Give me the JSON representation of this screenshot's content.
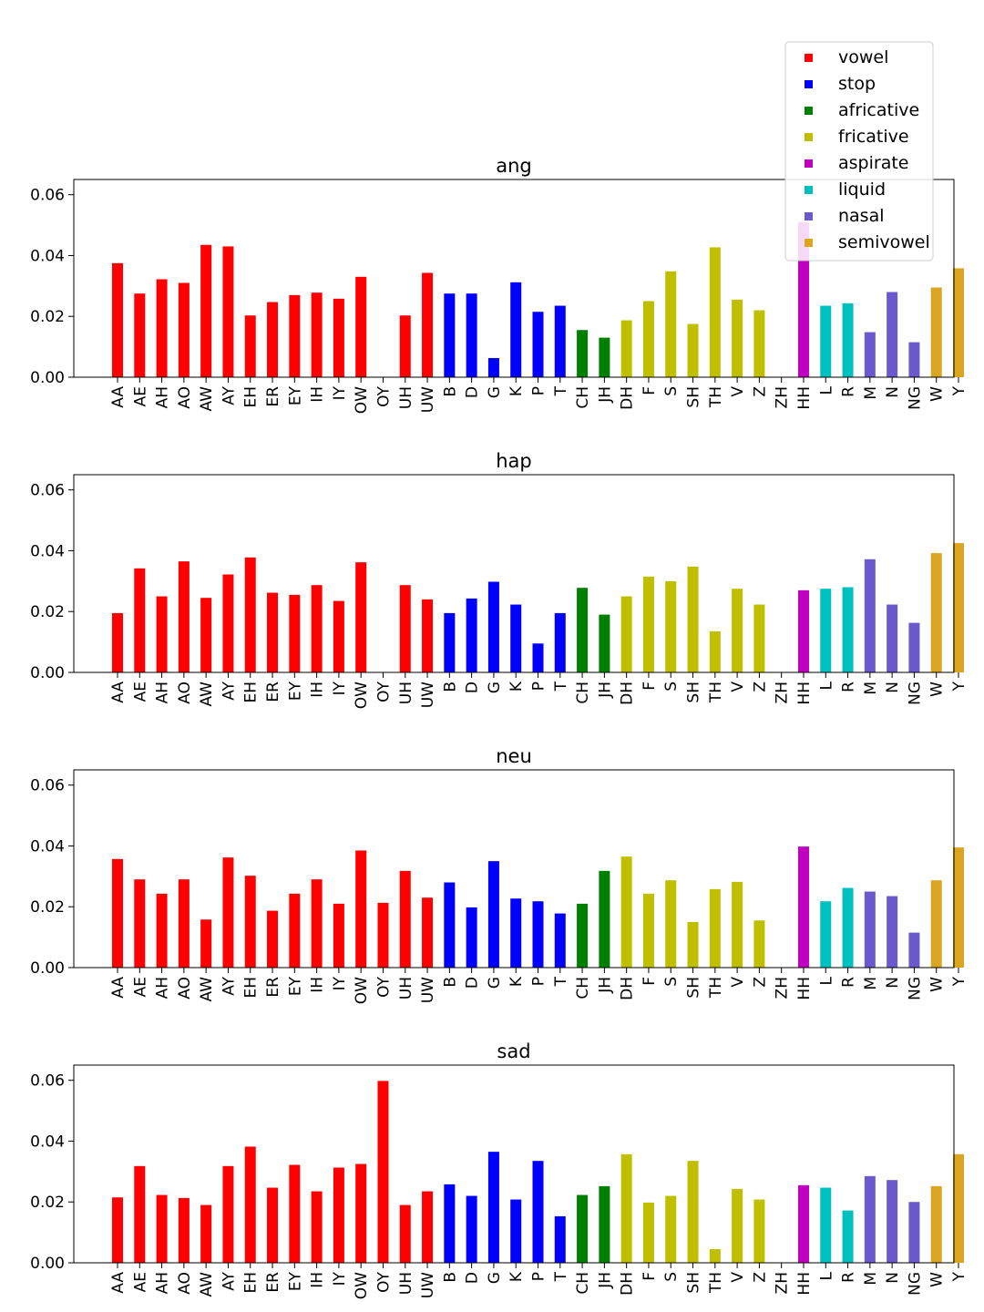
{
  "chart_data": {
    "type": "bar",
    "categories": [
      "AA",
      "AE",
      "AH",
      "AO",
      "AW",
      "AY",
      "EH",
      "ER",
      "EY",
      "IH",
      "IY",
      "OW",
      "OY",
      "UH",
      "UW",
      "B",
      "D",
      "G",
      "K",
      "P",
      "T",
      "CH",
      "JH",
      "DH",
      "F",
      "S",
      "SH",
      "TH",
      "V",
      "Z",
      "ZH",
      "HH",
      "L",
      "R",
      "M",
      "N",
      "NG",
      "W",
      "Y"
    ],
    "category_groups": [
      "vowel",
      "vowel",
      "vowel",
      "vowel",
      "vowel",
      "vowel",
      "vowel",
      "vowel",
      "vowel",
      "vowel",
      "vowel",
      "vowel",
      "vowel",
      "vowel",
      "vowel",
      "stop",
      "stop",
      "stop",
      "stop",
      "stop",
      "stop",
      "africative",
      "africative",
      "fricative",
      "fricative",
      "fricative",
      "fricative",
      "fricative",
      "fricative",
      "fricative",
      "fricative",
      "aspirate",
      "liquid",
      "liquid",
      "nasal",
      "nasal",
      "nasal",
      "semivowel",
      "semivowel"
    ],
    "legend": {
      "position": "top-right",
      "entries": [
        {
          "label": "vowel",
          "color": "#ff0000"
        },
        {
          "label": "stop",
          "color": "#0000ff"
        },
        {
          "label": "africative",
          "color": "#008000"
        },
        {
          "label": "fricative",
          "color": "#bfbf00"
        },
        {
          "label": "aspirate",
          "color": "#bf00bf"
        },
        {
          "label": "liquid",
          "color": "#00bfbf"
        },
        {
          "label": "nasal",
          "color": "#6a5acd"
        },
        {
          "label": "semivowel",
          "color": "#daa520"
        }
      ]
    },
    "ylim": [
      0,
      0.065
    ],
    "yticks": [
      "0.00",
      "0.02",
      "0.04",
      "0.06"
    ],
    "panels": [
      {
        "title": "ang",
        "values": [
          0.0375,
          0.0275,
          0.0322,
          0.031,
          0.0435,
          0.043,
          0.0203,
          0.0247,
          0.027,
          0.0278,
          0.0258,
          0.033,
          0,
          0.0203,
          0.0343,
          0.0275,
          0.0275,
          0.0063,
          0.0312,
          0.0215,
          0.0235,
          0.0155,
          0.013,
          0.0187,
          0.025,
          0.0348,
          0.0175,
          0.0427,
          0.0255,
          0.022,
          0,
          0.051,
          0.0235,
          0.0243,
          0.0148,
          0.028,
          0.0115,
          0.0295,
          0.0358
        ]
      },
      {
        "title": "hap",
        "values": [
          0.0195,
          0.0342,
          0.025,
          0.0365,
          0.0245,
          0.0322,
          0.0378,
          0.0262,
          0.0255,
          0.0287,
          0.0235,
          0.0362,
          0,
          0.0287,
          0.024,
          0.0195,
          0.0243,
          0.0298,
          0.0223,
          0.0095,
          0.0195,
          0.0278,
          0.019,
          0.025,
          0.0315,
          0.03,
          0.0348,
          0.0135,
          0.0275,
          0.0223,
          0,
          0.027,
          0.0275,
          0.028,
          0.0372,
          0.0223,
          0.0163,
          0.0392,
          0.0425
        ]
      },
      {
        "title": "neu",
        "values": [
          0.0357,
          0.029,
          0.0243,
          0.029,
          0.0158,
          0.0362,
          0.0302,
          0.0187,
          0.0243,
          0.029,
          0.021,
          0.0385,
          0.0213,
          0.0318,
          0.023,
          0.028,
          0.0198,
          0.035,
          0.0227,
          0.0218,
          0.0178,
          0.021,
          0.0318,
          0.0365,
          0.0243,
          0.0287,
          0.015,
          0.0258,
          0.0282,
          0.0155,
          0,
          0.0398,
          0.0218,
          0.0262,
          0.025,
          0.0235,
          0.0115,
          0.0287,
          0.0395
        ]
      },
      {
        "title": "sad",
        "values": [
          0.0215,
          0.0318,
          0.0223,
          0.0213,
          0.019,
          0.0318,
          0.0382,
          0.0247,
          0.0322,
          0.0235,
          0.0313,
          0.0325,
          0.0598,
          0.019,
          0.0235,
          0.0258,
          0.022,
          0.0365,
          0.0208,
          0.0335,
          0.0153,
          0.0223,
          0.0252,
          0.0357,
          0.0198,
          0.022,
          0.0335,
          0.0045,
          0.0243,
          0.0208,
          0,
          0.0255,
          0.0247,
          0.0172,
          0.0285,
          0.0272,
          0.02,
          0.0252,
          0.0357
        ]
      }
    ]
  }
}
